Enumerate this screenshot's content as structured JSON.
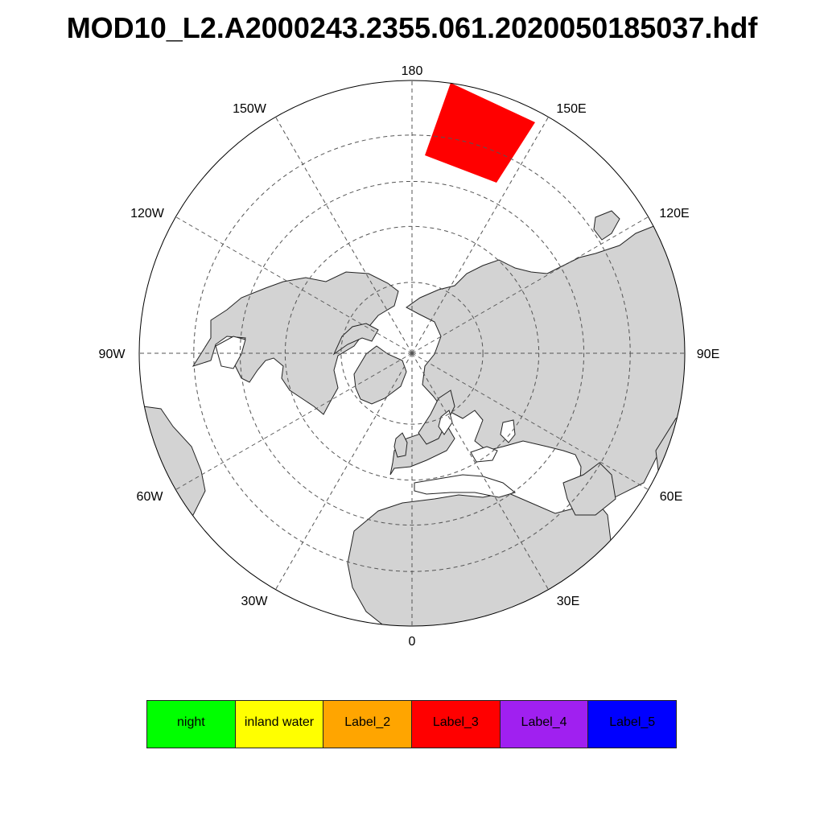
{
  "title": "MOD10_L2.A2000243.2355.061.2020050185037.hdf",
  "map": {
    "projection": "north polar stereographic",
    "longitude_labels": [
      {
        "key": "lon-0",
        "text": "0"
      },
      {
        "key": "lon-30e",
        "text": "30E"
      },
      {
        "key": "lon-60e",
        "text": "60E"
      },
      {
        "key": "lon-90e",
        "text": "90E"
      },
      {
        "key": "lon-120e",
        "text": "120E"
      },
      {
        "key": "lon-150e",
        "text": "150E"
      },
      {
        "key": "lon-180",
        "text": "180"
      },
      {
        "key": "lon-150w",
        "text": "150W"
      },
      {
        "key": "lon-120w",
        "text": "120W"
      },
      {
        "key": "lon-90w",
        "text": "90W"
      },
      {
        "key": "lon-60w",
        "text": "60W"
      },
      {
        "key": "lon-30w",
        "text": "30W"
      }
    ],
    "land_color": "#d3d3d3",
    "ocean_color": "#ffffff",
    "swath_color": "#ff0000"
  },
  "legend": [
    {
      "label": "night",
      "color": "#00ff00"
    },
    {
      "label": "inland water",
      "color": "#ffff00"
    },
    {
      "label": "Label_2",
      "color": "#ffa500"
    },
    {
      "label": "Label_3",
      "color": "#ff0000"
    },
    {
      "label": "Label_4",
      "color": "#a020f0"
    },
    {
      "label": "Label_5",
      "color": "#0000ff"
    }
  ]
}
